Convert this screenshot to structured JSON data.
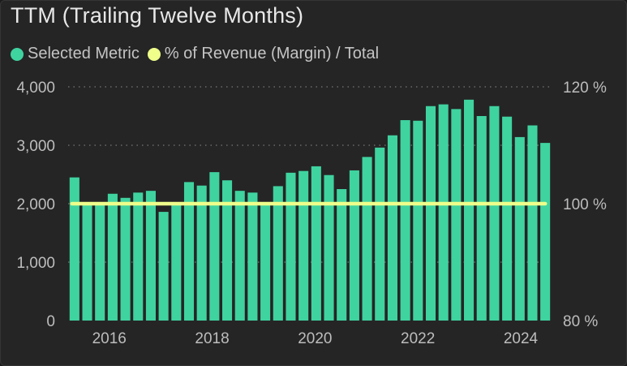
{
  "title": "TTM (Trailing Twelve Months)",
  "legend": [
    {
      "label": "Selected Metric",
      "color": "#3fd3a0"
    },
    {
      "label": "% of Revenue (Margin) / Total",
      "color": "#efff8a"
    }
  ],
  "chart_data": {
    "type": "bar",
    "title": "TTM (Trailing Twelve Months)",
    "legend_placement": "top-left",
    "grid": true,
    "x_ticks": [
      "2016",
      "2018",
      "2020",
      "2022",
      "2024"
    ],
    "y_left": {
      "ylim": [
        0,
        4000
      ],
      "ticks": [
        "0",
        "1,000",
        "2,000",
        "3,000",
        "4,000"
      ]
    },
    "y_right": {
      "ylim": [
        80,
        120
      ],
      "ticks": [
        "80 %",
        "100 %",
        "120 %"
      ]
    },
    "series": [
      {
        "name": "Selected Metric",
        "type": "bar",
        "axis": "left",
        "color": "#3fd3a0",
        "values": [
          2450,
          2020,
          2020,
          2170,
          2100,
          2190,
          2220,
          1860,
          2020,
          2370,
          2310,
          2540,
          2400,
          2220,
          2190,
          2020,
          2300,
          2530,
          2560,
          2640,
          2490,
          2250,
          2570,
          2800,
          2960,
          3170,
          3430,
          3420,
          3670,
          3700,
          3620,
          3780,
          3500,
          3670,
          3490,
          3140,
          3340,
          3040
        ]
      },
      {
        "name": "% of Revenue (Margin) / Total",
        "type": "line",
        "axis": "right",
        "color": "#efff8a",
        "values": [
          100,
          100,
          100,
          100,
          100,
          100,
          100,
          100,
          100,
          100,
          100,
          100,
          100,
          100,
          100,
          100,
          100,
          100,
          100,
          100,
          100,
          100,
          100,
          100,
          100,
          100,
          100,
          100,
          100,
          100,
          100,
          100,
          100,
          100,
          100,
          100,
          100,
          100
        ]
      }
    ]
  }
}
